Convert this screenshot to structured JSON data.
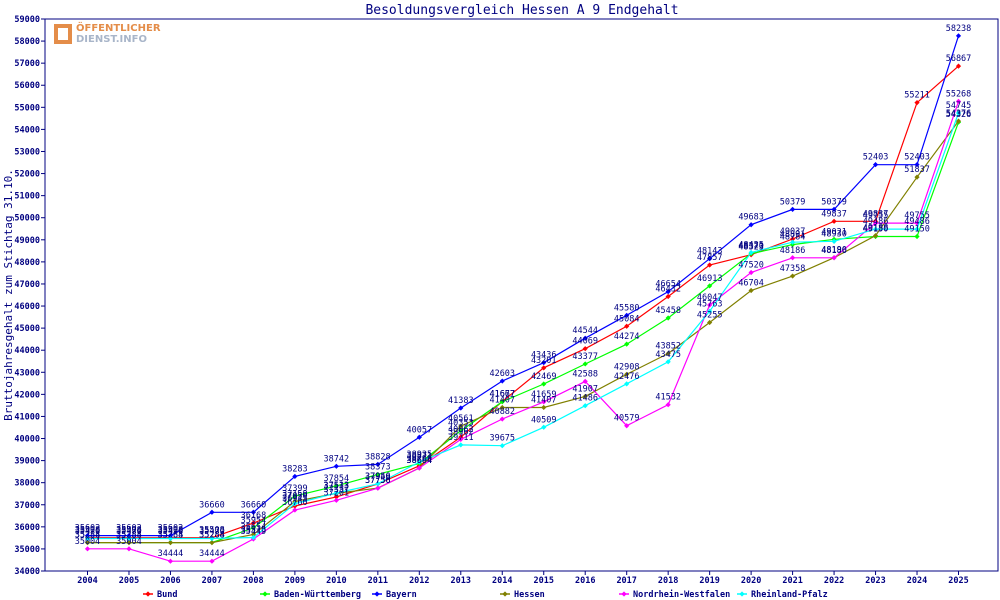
{
  "chart_data": {
    "type": "line",
    "title": "Besoldungsvergleich Hessen A 9 Endgehalt",
    "xlabel": "",
    "ylabel": "Bruttojahresgehalt zum Stichtag 31.10.",
    "ylim": [
      34000,
      59000
    ],
    "yticks": [
      34000,
      35000,
      36000,
      37000,
      38000,
      39000,
      40000,
      41000,
      42000,
      43000,
      44000,
      45000,
      46000,
      47000,
      48000,
      49000,
      50000,
      51000,
      52000,
      53000,
      54000,
      55000,
      56000,
      57000,
      58000,
      59000
    ],
    "categories": [
      "2004",
      "2005",
      "2006",
      "2007",
      "2008",
      "2009",
      "2010",
      "2011",
      "2012",
      "2013",
      "2014",
      "2015",
      "2016",
      "2017",
      "2018",
      "2019",
      "2020",
      "2021",
      "2022",
      "2023",
      "2024",
      "2025"
    ],
    "grid": false,
    "legend_position": "bottom",
    "series": [
      {
        "name": "Bund",
        "color": "#ff0000",
        "values": [
          35508,
          35508,
          35508,
          35508,
          36168,
          36945,
          37357,
          37946,
          38766,
          40062,
          41677,
          43201,
          44069,
          45084,
          46432,
          47857,
          48323,
          49037,
          49837,
          49837,
          55211,
          56867
        ]
      },
      {
        "name": "Baden-Württemberg",
        "color": "#00ff00",
        "values": [
          35288,
          35288,
          35288,
          35288,
          35954,
          37399,
          37854,
          38373,
          38871,
          40353,
          41667,
          42469,
          43377,
          44274,
          45458,
          46913,
          48370,
          48784,
          49021,
          49150,
          49150,
          54326
        ]
      },
      {
        "name": "Bayern",
        "color": "#0000ff",
        "values": [
          35602,
          35602,
          35602,
          36660,
          36660,
          38283,
          38742,
          38828,
          40057,
          41383,
          42603,
          43436,
          44544,
          45580,
          46654,
          48143,
          49683,
          50379,
          50379,
          52403,
          52403,
          58238
        ]
      },
      {
        "name": "Hessen",
        "color": "#808000",
        "values": [
          35284,
          35284,
          35284,
          35284,
          35654,
          37150,
          37513,
          37756,
          38664,
          40561,
          41407,
          41407,
          41907,
          42908,
          43852,
          45255,
          46704,
          47358,
          48190,
          49188,
          51837,
          54376
        ]
      },
      {
        "name": "Nordrhein-Westfalen",
        "color": "#ff00ff",
        "values": [
          35004,
          35004,
          34444,
          34444,
          35449,
          36760,
          37201,
          37750,
          38664,
          39962,
          40882,
          41659,
          42588,
          40579,
          41532,
          46047,
          47520,
          48186,
          48186,
          49755,
          49755,
          55268
        ]
      },
      {
        "name": "Rheinland-Pfalz",
        "color": "#00ffff",
        "values": [
          35470,
          35470,
          35470,
          35470,
          35515,
          37050,
          37533,
          37950,
          38935,
          39711,
          39675,
          40509,
          41486,
          42476,
          43475,
          45763,
          48425,
          48891,
          48930,
          49486,
          49486,
          54745
        ]
      }
    ]
  },
  "logo": {
    "line1": "ÖFFENTLICHER",
    "line2": "DIENST.INFO"
  }
}
